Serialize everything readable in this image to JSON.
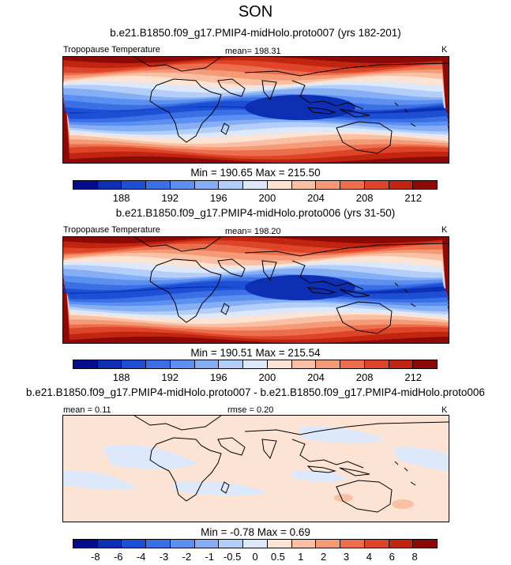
{
  "season": "SON",
  "colors": {
    "abs_scale": [
      "#050d8c",
      "#0c2fb4",
      "#1d4fd5",
      "#3a6fe6",
      "#5b8ff0",
      "#86aef5",
      "#b3cef9",
      "#dde9fb",
      "#fde3d3",
      "#fac0a3",
      "#f59a76",
      "#ec6e4c",
      "#de4428",
      "#c1240f",
      "#8c0a05"
    ],
    "diff_scale": [
      "#050d8c",
      "#0c2fb4",
      "#1d4fd5",
      "#3a6fe6",
      "#5b8ff0",
      "#86aef5",
      "#b3cef9",
      "#dde9fb",
      "#fde3d3",
      "#fac0a3",
      "#f59a76",
      "#ec6e4c",
      "#de4428",
      "#c1240f",
      "#8c0a05"
    ],
    "land": "#000000"
  },
  "panels": [
    {
      "title": "b.e21.B1850.f09_g17.PMIP4-midHolo.proto007 (yrs 182-201)",
      "left_label": "Tropopause Temperature",
      "mean_text": "mean= 198.31",
      "unit": "K",
      "minmax_text": "Min = 190.65 Max = 215.50",
      "ticks": [
        "188",
        "192",
        "196",
        "200",
        "204",
        "208",
        "212"
      ]
    },
    {
      "title": "b.e21.B1850.f09_g17.PMIP4-midHolo.proto006 (yrs 31-50)",
      "left_label": "Tropopause Temperature",
      "mean_text": "mean= 198.20",
      "unit": "K",
      "minmax_text": "Min = 190.51 Max = 215.54",
      "ticks": [
        "188",
        "192",
        "196",
        "200",
        "204",
        "208",
        "212"
      ]
    },
    {
      "title": "b.e21.B1850.f09_g17.PMIP4-midHolo.proto007 - b.e21.B1850.f09_g17.PMIP4-midHolo.proto006",
      "left_label": "mean =  0.11",
      "mean_text": "rmse =   0.20",
      "unit": "K",
      "minmax_text": "Min =  -0.78 Max =   0.69",
      "ticks": [
        "-8",
        "-6",
        "-4",
        "-3",
        "-2",
        "-1",
        "-0.5",
        "0",
        "0.5",
        "1",
        "2",
        "3",
        "4",
        "6",
        "8"
      ]
    }
  ],
  "chart_data": [
    {
      "type": "heatmap",
      "title": "b.e21.B1850.f09_g17.PMIP4-midHolo.proto007 (yrs 182-201)",
      "variable": "Tropopause Temperature",
      "units": "K",
      "mean": 198.31,
      "min": 190.65,
      "max": 215.5,
      "contour_levels": [
        186,
        188,
        190,
        192,
        194,
        196,
        198,
        200,
        202,
        204,
        206,
        208,
        210,
        212,
        214
      ]
    },
    {
      "type": "heatmap",
      "title": "b.e21.B1850.f09_g17.PMIP4-midHolo.proto006 (yrs 31-50)",
      "variable": "Tropopause Temperature",
      "units": "K",
      "mean": 198.2,
      "min": 190.51,
      "max": 215.54,
      "contour_levels": [
        186,
        188,
        190,
        192,
        194,
        196,
        198,
        200,
        202,
        204,
        206,
        208,
        210,
        212,
        214
      ]
    },
    {
      "type": "heatmap",
      "title": "b.e21.B1850.f09_g17.PMIP4-midHolo.proto007 - b.e21.B1850.f09_g17.PMIP4-midHolo.proto006",
      "units": "K",
      "mean": 0.11,
      "rmse": 0.2,
      "min": -0.78,
      "max": 0.69,
      "contour_levels": [
        -8,
        -6,
        -4,
        -3,
        -2,
        -1,
        -0.5,
        0,
        0.5,
        1,
        2,
        3,
        4,
        6,
        8
      ]
    }
  ]
}
